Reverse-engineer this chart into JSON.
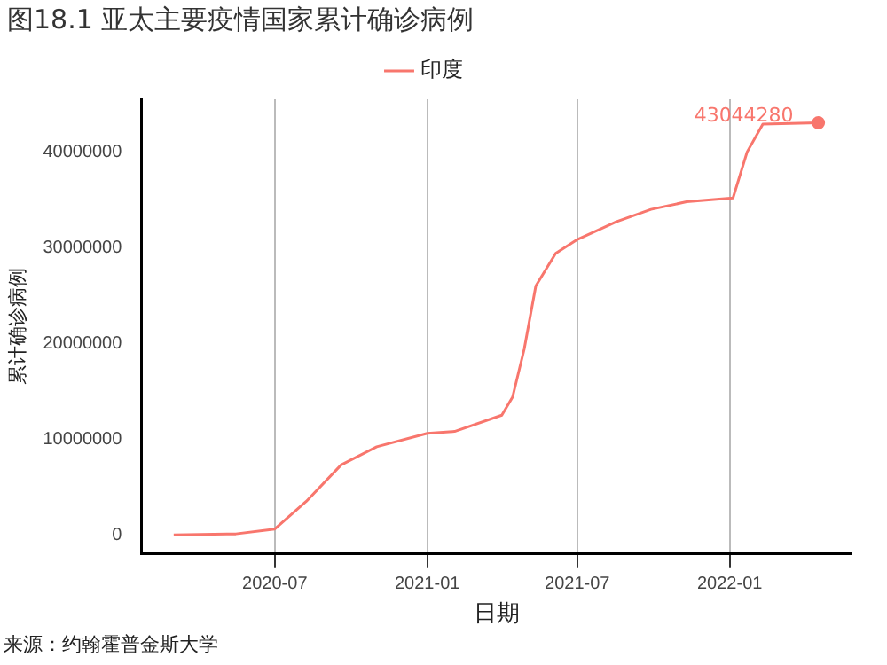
{
  "chart_data": {
    "type": "line",
    "title": "图18.1 亚太主要疫情国家累计确诊病例",
    "xlabel": "日期",
    "ylabel": "累计确诊病例",
    "annotations": [
      "来源：约翰霍普金斯大学"
    ],
    "x": [
      "2020-03-01",
      "2020-05-15",
      "2020-07-01",
      "2020-08-08",
      "2020-09-19",
      "2020-11-01",
      "2021-01-01",
      "2021-02-03",
      "2021-04-01",
      "2021-04-14",
      "2021-04-28",
      "2021-05-12",
      "2021-06-05",
      "2021-06-30",
      "2021-08-17",
      "2021-09-28",
      "2021-11-10",
      "2022-01-05",
      "2022-01-22",
      "2022-02-10",
      "2022-04-18"
    ],
    "series": [
      {
        "name": "印度",
        "color": "#f8766d",
        "values": [
          0,
          100000,
          600000,
          3500000,
          7300000,
          9200000,
          10600000,
          10800000,
          12500000,
          14400000,
          19400000,
          26000000,
          29400000,
          30800000,
          32700000,
          34000000,
          34800000,
          35200000,
          40000000,
          42900000,
          43044280
        ],
        "value_labels": [
          null,
          null,
          null,
          null,
          null,
          null,
          null,
          null,
          null,
          null,
          null,
          null,
          null,
          null,
          null,
          null,
          null,
          null,
          null,
          null,
          "43044280"
        ]
      }
    ],
    "xlim": [
      "2020-01-22",
      "2022-05-28"
    ],
    "xticks": [
      {
        "value": "2020-07-01",
        "label": "2020-07"
      },
      {
        "value": "2021-01-01",
        "label": "2021-01"
      },
      {
        "value": "2021-07-01",
        "label": "2021-07"
      },
      {
        "value": "2022-01-01",
        "label": "2022-01"
      }
    ],
    "ylim": [
      -2000000,
      45500000
    ],
    "yticks": [
      0,
      10000000,
      20000000,
      30000000,
      40000000
    ],
    "grid": "x",
    "legend": "top"
  }
}
